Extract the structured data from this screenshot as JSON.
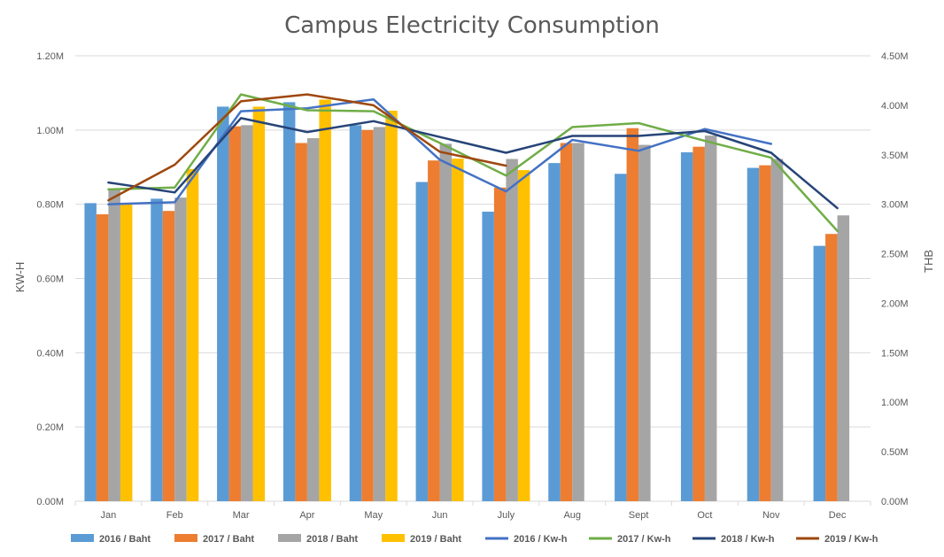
{
  "chart_data": {
    "type": "bar",
    "title": "Campus Electricity Consumption",
    "ylabel": "KW-H",
    "y2label": "THB",
    "categories": [
      "Jan",
      "Feb",
      "Mar",
      "Apr",
      "May",
      "Jun",
      "July",
      "Aug",
      "Sept",
      "Oct",
      "Nov",
      "Dec"
    ],
    "ylim": [
      0,
      1200000
    ],
    "y2lim": [
      0,
      4500000
    ],
    "yticks": [
      "0.00M",
      "0.20M",
      "0.40M",
      "0.60M",
      "0.80M",
      "1.00M",
      "1.20M"
    ],
    "y2ticks": [
      "0.00M",
      "0.50M",
      "1.00M",
      "1.50M",
      "2.00M",
      "2.50M",
      "3.00M",
      "3.50M",
      "4.00M",
      "4.50M"
    ],
    "grid": true,
    "legend_position": "bottom",
    "bar_series": [
      {
        "name": "2016 / Baht",
        "color": "#5B9BD5",
        "values": [
          803000,
          815000,
          1063000,
          1075000,
          1013000,
          860000,
          780000,
          911000,
          882000,
          940000,
          898000,
          688000
        ]
      },
      {
        "name": "2017 / Baht",
        "color": "#ED7D31",
        "values": [
          773000,
          782000,
          1010000,
          965000,
          1000000,
          918000,
          845000,
          965000,
          1005000,
          955000,
          905000,
          720000
        ]
      },
      {
        "name": "2018 / Baht",
        "color": "#A5A5A5",
        "values": [
          843000,
          818000,
          1013000,
          978000,
          1008000,
          963000,
          922000,
          965000,
          960000,
          985000,
          922000,
          770000
        ]
      },
      {
        "name": "2019 / Baht",
        "color": "#FFC000",
        "values": [
          800000,
          895000,
          1063000,
          1082000,
          1052000,
          923000,
          892000,
          null,
          null,
          null,
          null,
          null
        ]
      }
    ],
    "line_series": [
      {
        "name": "2016 / Kw-h",
        "color": "#4472C4",
        "values": [
          3000000,
          3020000,
          3940000,
          3970000,
          4060000,
          3450000,
          3130000,
          3650000,
          3540000,
          3760000,
          3610000,
          null
        ]
      },
      {
        "name": "2017 / Kw-h",
        "color": "#70AD47",
        "values": [
          3150000,
          3170000,
          4110000,
          3950000,
          3940000,
          3620000,
          3290000,
          3780000,
          3820000,
          3640000,
          3470000,
          2730000
        ]
      },
      {
        "name": "2018 / Kw-h",
        "color": "#264478",
        "values": [
          3220000,
          3120000,
          3870000,
          3730000,
          3840000,
          3680000,
          3520000,
          3690000,
          3690000,
          3740000,
          3520000,
          2960000
        ]
      },
      {
        "name": "2019 / Kw-h",
        "color": "#9E480E",
        "values": [
          3040000,
          3400000,
          4040000,
          4110000,
          4000000,
          3530000,
          3390000,
          null,
          null,
          null,
          null,
          null
        ]
      }
    ]
  }
}
